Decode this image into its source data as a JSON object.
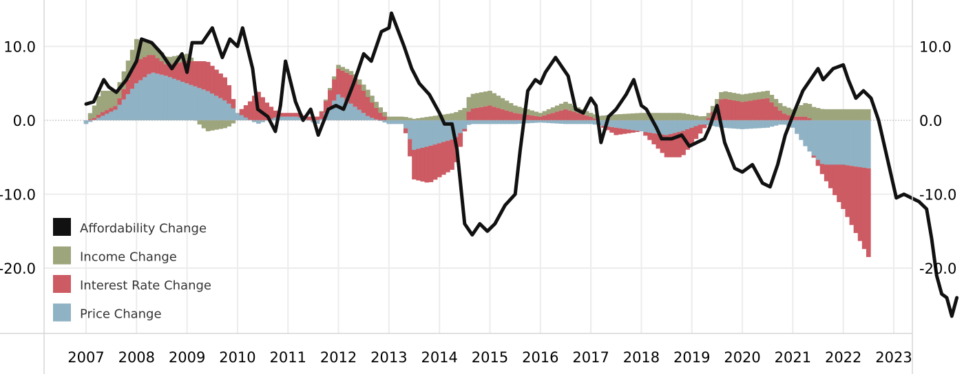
{
  "chart_data": {
    "type": "bar",
    "title": "",
    "xlabel": "",
    "ylabel": "",
    "ylim": [
      -29,
      16
    ],
    "y_ticks": [
      "10.0",
      "0.0",
      "-10.0",
      "-20.0"
    ],
    "y_tick_values": [
      10,
      0,
      -10,
      -20
    ],
    "x_ticks": [
      "2007",
      "2008",
      "2009",
      "2010",
      "2011",
      "2012",
      "2013",
      "2014",
      "2015",
      "2016",
      "2017",
      "2018",
      "2019",
      "2020",
      "2021",
      "2022",
      "2023"
    ],
    "x_tick_values": [
      2007,
      2008,
      2009,
      2010,
      2011,
      2012,
      2013,
      2014,
      2015,
      2016,
      2017,
      2018,
      2019,
      2020,
      2021,
      2022,
      2023
    ],
    "legend_position": "bottom-left",
    "stacked_bars": true,
    "colors": {
      "affordability": "#111111",
      "income": "#9da57c",
      "interest": "#cc5b63",
      "price": "#8fb2c4"
    },
    "series": [
      {
        "name": "Price Change",
        "kind": "bar",
        "color_key": "price",
        "points": [
          [
            2007.0,
            -0.5
          ],
          [
            2007.3,
            0.5
          ],
          [
            2007.6,
            1.5
          ],
          [
            2008.0,
            5
          ],
          [
            2008.3,
            6.5
          ],
          [
            2008.6,
            6
          ],
          [
            2009.0,
            5
          ],
          [
            2009.4,
            4
          ],
          [
            2009.8,
            2.5
          ],
          [
            2010.0,
            1
          ],
          [
            2010.4,
            -0.5
          ],
          [
            2010.8,
            0.5
          ],
          [
            2011.2,
            0.5
          ],
          [
            2011.6,
            -0.5
          ],
          [
            2012.0,
            3.5
          ],
          [
            2012.3,
            2
          ],
          [
            2012.6,
            0.5
          ],
          [
            2013.0,
            -0.5
          ],
          [
            2013.3,
            -0.5
          ],
          [
            2013.5,
            -4
          ],
          [
            2013.8,
            -3.5
          ],
          [
            2014.3,
            -2.5
          ],
          [
            2014.6,
            -0.5
          ],
          [
            2015.0,
            -0.5
          ],
          [
            2015.5,
            -0.5
          ],
          [
            2016.0,
            -0.3
          ],
          [
            2016.5,
            -0.5
          ],
          [
            2017.0,
            -0.5
          ],
          [
            2017.5,
            -1
          ],
          [
            2018.0,
            -1.5
          ],
          [
            2018.5,
            -2
          ],
          [
            2018.8,
            -1.5
          ],
          [
            2019.2,
            -0.5
          ],
          [
            2019.6,
            -1
          ],
          [
            2020.0,
            -1.2
          ],
          [
            2020.5,
            -1
          ],
          [
            2020.8,
            -0.5
          ],
          [
            2021.0,
            -1
          ],
          [
            2021.3,
            -4
          ],
          [
            2021.6,
            -6
          ],
          [
            2022.0,
            -6
          ],
          [
            2022.5,
            -6.5
          ]
        ]
      },
      {
        "name": "Interest Rate Change",
        "kind": "bar",
        "color_key": "interest",
        "points": [
          [
            2007.0,
            0
          ],
          [
            2007.3,
            0.5
          ],
          [
            2007.6,
            0.5
          ],
          [
            2008.0,
            3
          ],
          [
            2008.3,
            2.5
          ],
          [
            2008.6,
            1.5
          ],
          [
            2009.0,
            3
          ],
          [
            2009.4,
            4
          ],
          [
            2009.8,
            3
          ],
          [
            2010.0,
            0
          ],
          [
            2010.4,
            4
          ],
          [
            2010.8,
            0.5
          ],
          [
            2011.2,
            0.5
          ],
          [
            2011.6,
            0.5
          ],
          [
            2012.0,
            3.5
          ],
          [
            2012.3,
            4
          ],
          [
            2012.6,
            2.5
          ],
          [
            2013.0,
            0
          ],
          [
            2013.3,
            0
          ],
          [
            2013.5,
            -4
          ],
          [
            2013.8,
            -5
          ],
          [
            2014.3,
            -4
          ],
          [
            2014.6,
            1.5
          ],
          [
            2015.0,
            2
          ],
          [
            2015.5,
            1
          ],
          [
            2016.0,
            0.5
          ],
          [
            2016.5,
            1.5
          ],
          [
            2017.0,
            0.5
          ],
          [
            2017.5,
            -1
          ],
          [
            2018.0,
            0
          ],
          [
            2018.5,
            -3
          ],
          [
            2018.8,
            -3.5
          ],
          [
            2019.2,
            -1
          ],
          [
            2019.6,
            3
          ],
          [
            2020.0,
            2.5
          ],
          [
            2020.5,
            3
          ],
          [
            2020.8,
            1
          ],
          [
            2021.0,
            0.5
          ],
          [
            2021.3,
            0.5
          ],
          [
            2021.6,
            -1.5
          ],
          [
            2022.0,
            -6
          ],
          [
            2022.5,
            -12
          ]
        ]
      },
      {
        "name": "Income Change",
        "kind": "bar",
        "color_key": "income",
        "points": [
          [
            2007.0,
            0
          ],
          [
            2007.3,
            3
          ],
          [
            2007.6,
            2
          ],
          [
            2008.0,
            3
          ],
          [
            2008.3,
            1.5
          ],
          [
            2008.6,
            1
          ],
          [
            2009.0,
            1
          ],
          [
            2009.4,
            -1.5
          ],
          [
            2009.8,
            -1
          ],
          [
            2010.0,
            0
          ],
          [
            2010.4,
            0
          ],
          [
            2010.8,
            0
          ],
          [
            2011.2,
            0
          ],
          [
            2011.6,
            0
          ],
          [
            2012.0,
            0.5
          ],
          [
            2012.3,
            0.5
          ],
          [
            2012.6,
            1
          ],
          [
            2013.0,
            0.5
          ],
          [
            2013.3,
            0.5
          ],
          [
            2013.5,
            0.2
          ],
          [
            2013.8,
            0.5
          ],
          [
            2014.3,
            1
          ],
          [
            2014.6,
            2
          ],
          [
            2015.0,
            2
          ],
          [
            2015.5,
            1
          ],
          [
            2016.0,
            0.5
          ],
          [
            2016.5,
            1
          ],
          [
            2017.0,
            0.5
          ],
          [
            2017.5,
            0.8
          ],
          [
            2018.0,
            1
          ],
          [
            2018.5,
            1
          ],
          [
            2018.8,
            1
          ],
          [
            2019.2,
            0.5
          ],
          [
            2019.6,
            1
          ],
          [
            2020.0,
            1
          ],
          [
            2020.5,
            1
          ],
          [
            2020.8,
            1
          ],
          [
            2021.0,
            1
          ],
          [
            2021.3,
            2
          ],
          [
            2021.6,
            1.5
          ],
          [
            2022.0,
            1.5
          ],
          [
            2022.5,
            1.5
          ]
        ]
      },
      {
        "name": "Affordability Change",
        "kind": "line",
        "color_key": "affordability",
        "points": [
          [
            2007.0,
            2.2
          ],
          [
            2007.15,
            2.5
          ],
          [
            2007.35,
            5.5
          ],
          [
            2007.45,
            4.5
          ],
          [
            2007.6,
            3.8
          ],
          [
            2007.8,
            5.5
          ],
          [
            2008.0,
            8
          ],
          [
            2008.1,
            11
          ],
          [
            2008.3,
            10.5
          ],
          [
            2008.5,
            9
          ],
          [
            2008.7,
            7
          ],
          [
            2008.9,
            9
          ],
          [
            2009.0,
            6.5
          ],
          [
            2009.1,
            10.5
          ],
          [
            2009.3,
            10.5
          ],
          [
            2009.5,
            12.5
          ],
          [
            2009.7,
            8.5
          ],
          [
            2009.85,
            11
          ],
          [
            2010.0,
            10
          ],
          [
            2010.1,
            12.5
          ],
          [
            2010.3,
            7
          ],
          [
            2010.4,
            1.5
          ],
          [
            2010.6,
            0.5
          ],
          [
            2010.75,
            -1.5
          ],
          [
            2010.85,
            2
          ],
          [
            2010.95,
            8
          ],
          [
            2011.15,
            2.5
          ],
          [
            2011.3,
            0
          ],
          [
            2011.45,
            1.5
          ],
          [
            2011.6,
            -2
          ],
          [
            2011.8,
            1.5
          ],
          [
            2011.95,
            2
          ],
          [
            2012.1,
            1.5
          ],
          [
            2012.3,
            5
          ],
          [
            2012.5,
            9
          ],
          [
            2012.65,
            8
          ],
          [
            2012.85,
            12
          ],
          [
            2013.0,
            12.5
          ],
          [
            2013.05,
            14.5
          ],
          [
            2013.3,
            10
          ],
          [
            2013.45,
            7
          ],
          [
            2013.6,
            5
          ],
          [
            2013.8,
            3.5
          ],
          [
            2014.0,
            1
          ],
          [
            2014.1,
            -0.5
          ],
          [
            2014.25,
            -0.5
          ],
          [
            2014.35,
            -4
          ],
          [
            2014.5,
            -14
          ],
          [
            2014.65,
            -15.5
          ],
          [
            2014.8,
            -14
          ],
          [
            2014.95,
            -15
          ],
          [
            2015.1,
            -14
          ],
          [
            2015.3,
            -11.5
          ],
          [
            2015.5,
            -10
          ],
          [
            2015.6,
            -4
          ],
          [
            2015.75,
            4
          ],
          [
            2015.9,
            5.5
          ],
          [
            2016.0,
            5
          ],
          [
            2016.1,
            6.5
          ],
          [
            2016.3,
            8.5
          ],
          [
            2016.45,
            7
          ],
          [
            2016.55,
            6
          ],
          [
            2016.7,
            1.5
          ],
          [
            2016.85,
            1
          ],
          [
            2017.0,
            3
          ],
          [
            2017.1,
            2
          ],
          [
            2017.2,
            -3
          ],
          [
            2017.35,
            0.5
          ],
          [
            2017.5,
            1.5
          ],
          [
            2017.7,
            3.5
          ],
          [
            2017.85,
            5.5
          ],
          [
            2018.0,
            2
          ],
          [
            2018.1,
            1.5
          ],
          [
            2018.3,
            -1
          ],
          [
            2018.4,
            -2.5
          ],
          [
            2018.6,
            -2.5
          ],
          [
            2018.8,
            -2
          ],
          [
            2018.95,
            -3.5
          ],
          [
            2019.1,
            -3
          ],
          [
            2019.25,
            -2.5
          ],
          [
            2019.35,
            -1
          ],
          [
            2019.5,
            2
          ],
          [
            2019.65,
            -3
          ],
          [
            2019.85,
            -6.5
          ],
          [
            2020.0,
            -7
          ],
          [
            2020.2,
            -6
          ],
          [
            2020.4,
            -8.5
          ],
          [
            2020.55,
            -9
          ],
          [
            2020.7,
            -6
          ],
          [
            2020.85,
            -2
          ],
          [
            2021.05,
            1.5
          ],
          [
            2021.2,
            4
          ],
          [
            2021.35,
            5.5
          ],
          [
            2021.5,
            7
          ],
          [
            2021.6,
            5.5
          ],
          [
            2021.8,
            7
          ],
          [
            2022.0,
            7.5
          ],
          [
            2022.1,
            5.5
          ],
          [
            2022.25,
            3
          ],
          [
            2022.4,
            4
          ],
          [
            2022.55,
            3
          ],
          [
            2022.7,
            0
          ],
          [
            2022.9,
            -6
          ],
          [
            2023.05,
            -10.5
          ],
          [
            2023.2,
            -10
          ],
          [
            2023.35,
            -10.5
          ],
          [
            2023.5,
            -11
          ],
          [
            2023.65,
            -12
          ],
          [
            2023.75,
            -16
          ],
          [
            2023.85,
            -21
          ],
          [
            2023.95,
            -23.5
          ],
          [
            2024.05,
            -24
          ],
          [
            2024.15,
            -26.5
          ],
          [
            2024.25,
            -24
          ]
        ]
      }
    ]
  }
}
